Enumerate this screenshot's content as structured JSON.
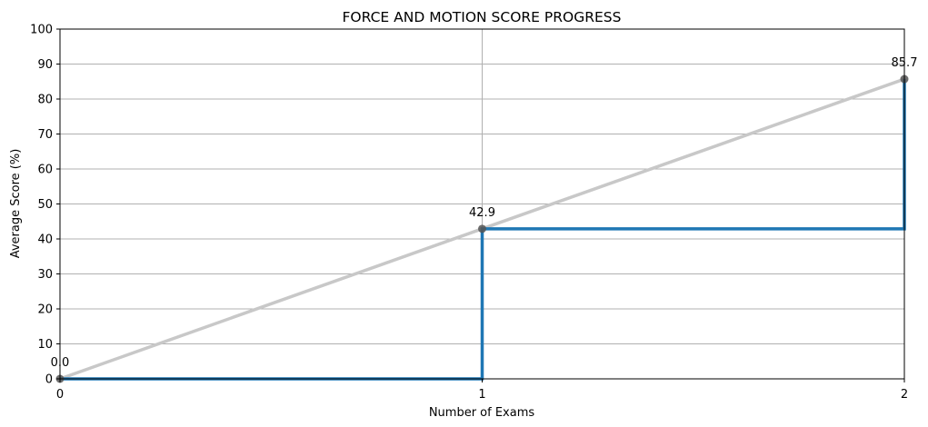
{
  "chart_data": {
    "type": "line",
    "title": "FORCE AND MOTION SCORE PROGRESS",
    "xlabel": "Number of Exams",
    "ylabel": "Average Score (%)",
    "xlim": [
      0,
      2
    ],
    "ylim": [
      0,
      100
    ],
    "x_ticks": [
      0,
      1,
      2
    ],
    "y_ticks": [
      0,
      10,
      20,
      30,
      40,
      50,
      60,
      70,
      80,
      90,
      100
    ],
    "grid": true,
    "series": [
      {
        "style": "trend-line",
        "color": "#c8c8c8",
        "x": [
          0,
          1,
          2
        ],
        "y": [
          0.0,
          42.9,
          85.7
        ]
      },
      {
        "style": "step",
        "color": "#1f77b4",
        "x": [
          0,
          1,
          2
        ],
        "y": [
          0.0,
          42.9,
          85.7
        ]
      }
    ],
    "markers": {
      "color": "#555555",
      "x": [
        0,
        1,
        2
      ],
      "y": [
        0.0,
        42.9,
        85.7
      ]
    },
    "data_labels": [
      "0.0",
      "42.9",
      "85.7"
    ]
  }
}
